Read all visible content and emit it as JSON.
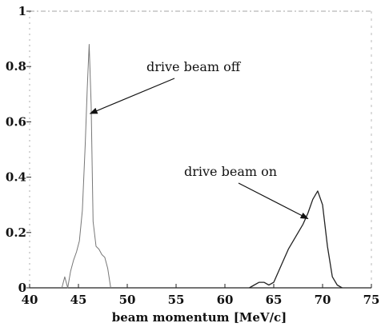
{
  "chart_data": {
    "type": "line",
    "title": "",
    "xlabel": "beam momentum [MeV/c]",
    "ylabel": "",
    "xlim": [
      40,
      75
    ],
    "ylim": [
      0,
      1
    ],
    "x_ticks": [
      40,
      45,
      50,
      55,
      60,
      65,
      70,
      75
    ],
    "y_ticks": [
      0,
      0.2,
      0.4,
      0.6,
      0.8,
      1
    ],
    "y_tick_labels": [
      "0",
      "0.2",
      "0.4",
      "0.6",
      "0.8",
      "1"
    ],
    "grid": false,
    "legend": "none",
    "series": [
      {
        "x": [
          43.3,
          43.6,
          43.9,
          44.2,
          44.5,
          44.8,
          45.1,
          45.4,
          45.7,
          45.9,
          46.1,
          46.3,
          46.5,
          46.8,
          47.1,
          47.4,
          47.7,
          48.0,
          48.3
        ],
        "y": [
          0.0,
          0.04,
          0.0,
          0.06,
          0.1,
          0.13,
          0.17,
          0.28,
          0.52,
          0.72,
          0.88,
          0.66,
          0.24,
          0.15,
          0.14,
          0.12,
          0.11,
          0.07,
          0.0
        ]
      },
      {
        "x": [
          62.5,
          63.0,
          63.5,
          64.0,
          64.5,
          65.0,
          65.5,
          66.0,
          66.5,
          67.0,
          67.5,
          68.0,
          68.5,
          69.0,
          69.5,
          70.0,
          70.5,
          71.0,
          71.5,
          72.0
        ],
        "y": [
          0.0,
          0.01,
          0.02,
          0.02,
          0.01,
          0.02,
          0.06,
          0.1,
          0.14,
          0.17,
          0.2,
          0.23,
          0.27,
          0.32,
          0.35,
          0.3,
          0.15,
          0.04,
          0.01,
          0.0
        ]
      }
    ],
    "annotations": [
      {
        "text": "drive beam off",
        "arrow_to": [
          46.2,
          0.63
        ]
      },
      {
        "text": "drive beam on",
        "arrow_to": [
          68.5,
          0.25
        ]
      }
    ]
  }
}
